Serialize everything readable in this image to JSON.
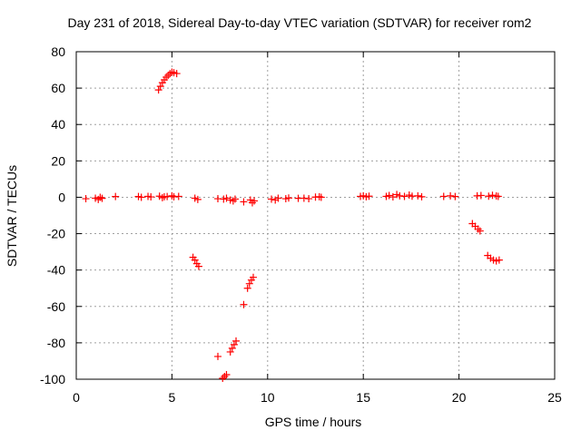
{
  "chart_data": {
    "type": "scatter",
    "title": "Day 231 of 2018, Sidereal Day-to-day VTEC variation (SDTVAR) for receiver rom2",
    "xlabel": "GPS time / hours",
    "ylabel": "SDTVAR / TECUs",
    "xlim": [
      0,
      25
    ],
    "ylim": [
      -100,
      80
    ],
    "xticks": [
      0,
      5,
      10,
      15,
      20,
      25
    ],
    "yticks": [
      -100,
      -80,
      -60,
      -40,
      -20,
      0,
      20,
      40,
      60,
      80
    ],
    "grid": true,
    "marker": "+",
    "color": "#ff0000",
    "series": [
      {
        "name": "SDTVAR",
        "points": [
          [
            0.5,
            -0.8
          ],
          [
            1.0,
            -0.5
          ],
          [
            1.15,
            -1.2
          ],
          [
            1.25,
            0.0
          ],
          [
            1.35,
            -0.6
          ],
          [
            2.05,
            0.4
          ],
          [
            3.25,
            0.4
          ],
          [
            3.4,
            0.0
          ],
          [
            3.75,
            0.5
          ],
          [
            3.9,
            0.2
          ],
          [
            4.35,
            0.6
          ],
          [
            4.5,
            -0.2
          ],
          [
            4.6,
            0.3
          ],
          [
            4.75,
            0.4
          ],
          [
            5.0,
            0.8
          ],
          [
            5.1,
            0.3
          ],
          [
            5.35,
            0.5
          ],
          [
            4.3,
            59
          ],
          [
            4.4,
            61
          ],
          [
            4.5,
            63
          ],
          [
            4.6,
            64.5
          ],
          [
            4.7,
            66
          ],
          [
            4.8,
            67
          ],
          [
            4.9,
            68
          ],
          [
            5.0,
            68.8
          ],
          [
            5.1,
            68.5
          ],
          [
            5.25,
            68
          ],
          [
            6.2,
            -0.5
          ],
          [
            6.35,
            -1.2
          ],
          [
            6.1,
            -33
          ],
          [
            6.2,
            -34.5
          ],
          [
            6.3,
            -36.5
          ],
          [
            6.4,
            -38
          ],
          [
            7.4,
            -87.5
          ],
          [
            7.65,
            -99.5
          ],
          [
            7.75,
            -98.5
          ],
          [
            7.85,
            -97.5
          ],
          [
            7.4,
            -0.8
          ],
          [
            7.7,
            -1.0
          ],
          [
            7.85,
            -0.5
          ],
          [
            8.05,
            -1.5
          ],
          [
            8.2,
            -2.0
          ],
          [
            8.3,
            -1.0
          ],
          [
            8.05,
            -85
          ],
          [
            8.15,
            -83
          ],
          [
            8.25,
            -81
          ],
          [
            8.35,
            -79
          ],
          [
            8.75,
            -59
          ],
          [
            8.95,
            -50
          ],
          [
            9.05,
            -47.5
          ],
          [
            9.15,
            -45.5
          ],
          [
            9.25,
            -44
          ],
          [
            8.75,
            -2.5
          ],
          [
            9.1,
            -1.5
          ],
          [
            9.2,
            -3.0
          ],
          [
            9.3,
            -2.0
          ],
          [
            10.2,
            -1.0
          ],
          [
            10.4,
            -1.5
          ],
          [
            10.55,
            -0.5
          ],
          [
            10.95,
            -0.8
          ],
          [
            11.1,
            -0.4
          ],
          [
            11.6,
            -0.6
          ],
          [
            11.9,
            -0.5
          ],
          [
            12.15,
            -0.8
          ],
          [
            12.5,
            0.1
          ],
          [
            12.7,
            0.3
          ],
          [
            12.8,
            0.0
          ],
          [
            14.85,
            0.5
          ],
          [
            15.0,
            0.8
          ],
          [
            15.15,
            0.3
          ],
          [
            15.3,
            0.6
          ],
          [
            16.2,
            0.5
          ],
          [
            16.35,
            1.0
          ],
          [
            16.55,
            0.2
          ],
          [
            16.75,
            1.5
          ],
          [
            16.9,
            0.8
          ],
          [
            17.15,
            0.5
          ],
          [
            17.4,
            1.2
          ],
          [
            17.55,
            0.6
          ],
          [
            17.85,
            0.8
          ],
          [
            18.05,
            0.3
          ],
          [
            19.2,
            0.5
          ],
          [
            19.55,
            0.8
          ],
          [
            19.8,
            0.4
          ],
          [
            20.7,
            -14.5
          ],
          [
            20.85,
            -16
          ],
          [
            21.0,
            -17.5
          ],
          [
            21.1,
            -18.5
          ],
          [
            20.95,
            0.8
          ],
          [
            21.15,
            1.0
          ],
          [
            21.55,
            0.6
          ],
          [
            21.75,
            1.1
          ],
          [
            21.95,
            0.7
          ],
          [
            22.05,
            0.5
          ],
          [
            21.5,
            -32
          ],
          [
            21.65,
            -33.5
          ],
          [
            21.8,
            -34.5
          ],
          [
            21.95,
            -35
          ],
          [
            22.1,
            -34.5
          ]
        ]
      }
    ]
  }
}
